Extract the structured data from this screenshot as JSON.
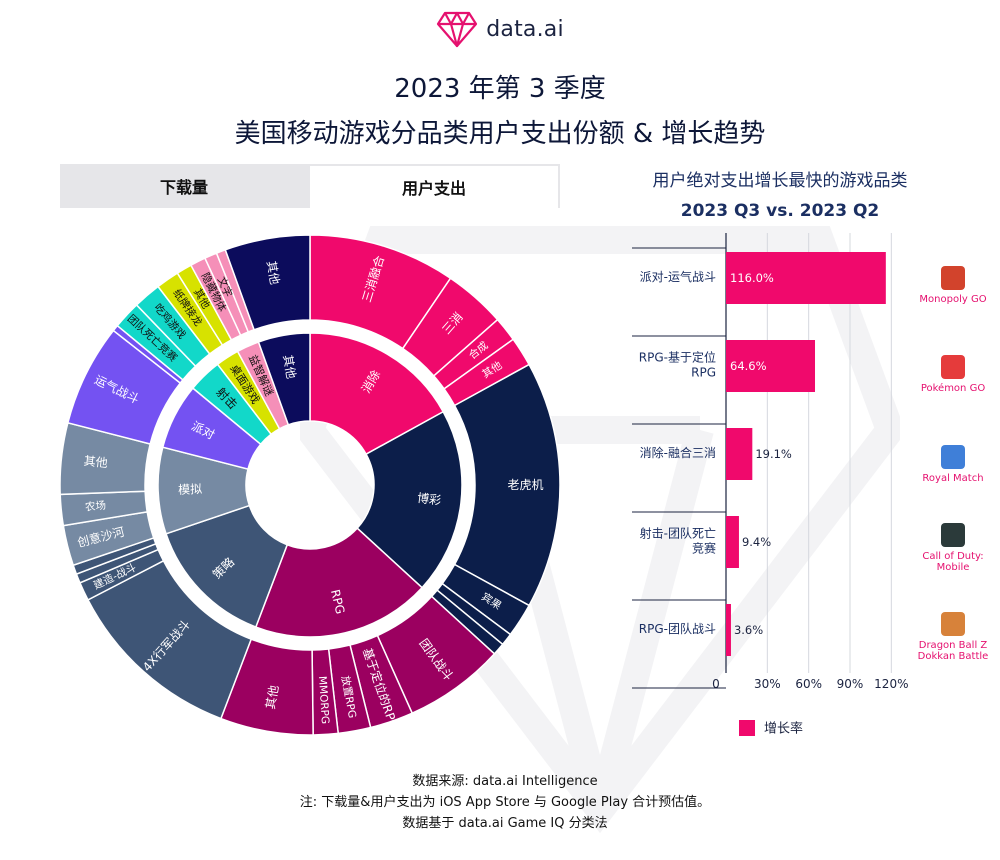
{
  "brand": {
    "name": "data.ai"
  },
  "title": {
    "line1": "2023 年第 3 季度",
    "line2": "美国移动游戏分品类用户支出份额 & 增长趋势"
  },
  "tabs": [
    {
      "label": "下载量",
      "active": false
    },
    {
      "label": "用户支出",
      "active": true
    }
  ],
  "colors": {
    "pink": "#f0096c",
    "magenta": "#9b0060",
    "navy": "#0c1e4a",
    "slate": "#3e5576",
    "gray": "#768aa3",
    "purple": "#7452f2",
    "teal": "#12d8c9",
    "yellow": "#d7e200",
    "lightpink": "#f58fb8",
    "darknavy": "#0c0c5c"
  },
  "sunburst": {
    "inner": [
      {
        "label": "消除",
        "share": 17.0,
        "color": "#f0096c"
      },
      {
        "label": "博彩",
        "share": 19.8,
        "color": "#0c1e4a"
      },
      {
        "label": "RPG",
        "share": 19.0,
        "color": "#9b0060"
      },
      {
        "label": "策略",
        "share": 14.0,
        "color": "#3e5576"
      },
      {
        "label": "模拟",
        "share": 9.2,
        "color": "#768aa3"
      },
      {
        "label": "派对",
        "share": 7.0,
        "color": "#7452f2"
      },
      {
        "label": "射击",
        "share": 3.6,
        "color": "#12d8c9"
      },
      {
        "label": "桌面游戏",
        "share": 2.5,
        "color": "#d7e200"
      },
      {
        "label": "益智解谜",
        "share": 2.4,
        "color": "#f58fb8"
      },
      {
        "label": "其他",
        "share": 5.5,
        "color": "#0c0c5c"
      }
    ],
    "outer": [
      {
        "label": "三消融合",
        "share": 9.5,
        "parent": 0,
        "color": "#f0096c"
      },
      {
        "label": "三消",
        "share": 4.0,
        "parent": 0,
        "color": "#f0096c"
      },
      {
        "label": "合成",
        "share": 1.6,
        "parent": 0,
        "color": "#f0096c"
      },
      {
        "label": "其他",
        "share": 1.9,
        "parent": 0,
        "color": "#f0096c"
      },
      {
        "label": "老虎机",
        "share": 16.0,
        "parent": 1,
        "color": "#0c1e4a"
      },
      {
        "label": "宾果",
        "share": 2.2,
        "parent": 1,
        "color": "#0c1e4a"
      },
      {
        "label": "",
        "share": 0.8,
        "parent": 1,
        "color": "#0c1e4a"
      },
      {
        "label": "",
        "share": 0.8,
        "parent": 1,
        "color": "#0c1e4a"
      },
      {
        "label": "团队战斗",
        "share": 6.5,
        "parent": 2,
        "color": "#9b0060"
      },
      {
        "label": "基于定位的RPG",
        "share": 2.8,
        "parent": 2,
        "color": "#9b0060"
      },
      {
        "label": "放置RPG",
        "share": 2.1,
        "parent": 2,
        "color": "#9b0060"
      },
      {
        "label": "MMORPG",
        "share": 1.6,
        "parent": 2,
        "color": "#9b0060"
      },
      {
        "label": "其他",
        "share": 6.0,
        "parent": 2,
        "color": "#9b0060"
      },
      {
        "label": "4X行军战斗",
        "share": 11.6,
        "parent": 3,
        "color": "#3e5576"
      },
      {
        "label": "建造-战斗",
        "share": 1.2,
        "parent": 3,
        "color": "#3e5576"
      },
      {
        "label": "",
        "share": 0.6,
        "parent": 3,
        "color": "#3e5576"
      },
      {
        "label": "",
        "share": 0.6,
        "parent": 3,
        "color": "#3e5576"
      },
      {
        "label": "创意沙河",
        "share": 2.6,
        "parent": 4,
        "color": "#768aa3"
      },
      {
        "label": "农场",
        "share": 2.0,
        "parent": 4,
        "color": "#768aa3"
      },
      {
        "label": "其他",
        "share": 4.6,
        "parent": 4,
        "color": "#768aa3"
      },
      {
        "label": "运气战斗",
        "share": 6.6,
        "parent": 5,
        "color": "#7452f2"
      },
      {
        "label": "",
        "share": 0.4,
        "parent": 5,
        "color": "#7452f2"
      },
      {
        "label": "团队死亡竞赛",
        "share": 1.8,
        "parent": 6,
        "color": "#12d8c9"
      },
      {
        "label": "吃鸡游戏",
        "share": 1.8,
        "parent": 6,
        "color": "#12d8c9"
      },
      {
        "label": "纸牌接龙",
        "share": 1.5,
        "parent": 7,
        "color": "#d7e200"
      },
      {
        "label": "其他",
        "share": 1.0,
        "parent": 7,
        "color": "#d7e200"
      },
      {
        "label": "隐藏物体",
        "share": 1.0,
        "parent": 8,
        "color": "#f58fb8"
      },
      {
        "label": "文字",
        "share": 0.8,
        "parent": 8,
        "color": "#f58fb8"
      },
      {
        "label": "",
        "share": 0.6,
        "parent": 8,
        "color": "#f58fb8"
      },
      {
        "label": "其他",
        "share": 5.5,
        "parent": 9,
        "color": "#0c0c5c"
      }
    ]
  },
  "bar_chart": {
    "title_line1": "用户绝对支出增长最快的游戏品类",
    "title_line2": "2023 Q3 vs. 2023 Q2",
    "legend": "增长率",
    "x_ticks": [
      "0",
      "30%",
      "60%",
      "90%",
      "120%"
    ],
    "games": [
      {
        "name": "Monopoly GO",
        "icon": "monopoly-go-icon",
        "color": "#d2432c"
      },
      {
        "name": "Pokémon GO",
        "icon": "pokemon-go-icon",
        "color": "#e53b3b"
      },
      {
        "name": "Royal Match",
        "icon": "royal-match-icon",
        "color": "#3f7fd8"
      },
      {
        "name": "Call of Duty: Mobile",
        "icon": "call-of-duty-icon",
        "color": "#2b3a3a"
      },
      {
        "name": "Dragon Ball Z Dokkan Battle",
        "icon": "dragon-ball-icon",
        "color": "#d7823a"
      }
    ]
  },
  "chart_data": [
    {
      "type": "pie",
      "title": "美国移动游戏分品类用户支出份额",
      "note": "sunburst; inner ring = genre share of user spend, outer ring = subgenre",
      "categories": [
        "消除",
        "博彩",
        "RPG",
        "策略",
        "模拟",
        "派对",
        "射击",
        "桌面游戏",
        "益智解谜",
        "其他"
      ],
      "values": [
        17.0,
        19.8,
        19.0,
        14.0,
        9.2,
        7.0,
        3.6,
        2.5,
        2.4,
        5.5
      ]
    },
    {
      "type": "bar",
      "orientation": "horizontal",
      "title": "用户绝对支出增长最快的游戏品类 2023 Q3 vs. 2023 Q2",
      "categories": [
        "派对-运气战斗",
        "RPG-基于定位 RPG",
        "消除-融合三消",
        "射击-团队死亡 竞赛",
        "RPG-团队战斗"
      ],
      "values": [
        116.0,
        64.6,
        19.1,
        9.4,
        3.6
      ],
      "value_labels": [
        "116.0%",
        "64.6%",
        "19.1%",
        "9.4%",
        "3.6%"
      ],
      "series": [
        {
          "name": "增长率",
          "values": [
            116.0,
            64.6,
            19.1,
            9.4,
            3.6
          ]
        }
      ],
      "xlim": [
        0,
        120
      ],
      "grid": true,
      "legend": "bottom"
    }
  ],
  "footer": {
    "line1": "数据来源: data.ai Intelligence",
    "line2": "注: 下载量&用户支出为 iOS App Store 与 Google Play 合计预估值。",
    "line3": "数据基于 data.ai Game IQ 分类法"
  }
}
